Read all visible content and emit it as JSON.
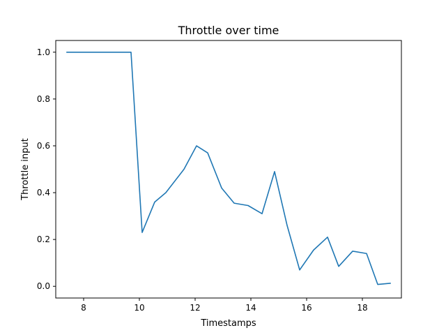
{
  "chart_data": {
    "type": "line",
    "title": "Throttle over time",
    "xlabel": "Timestamps",
    "ylabel": "Throttle input",
    "xlim": [
      7.0,
      19.4
    ],
    "ylim": [
      -0.05,
      1.05
    ],
    "xticks": [
      8,
      10,
      12,
      14,
      16,
      18
    ],
    "yticks": [
      0.0,
      0.2,
      0.4,
      0.6,
      0.8,
      1.0
    ],
    "xtick_labels": [
      "8",
      "10",
      "12",
      "14",
      "16",
      "18"
    ],
    "ytick_labels": [
      "0.0",
      "0.2",
      "0.4",
      "0.6",
      "0.8",
      "1.0"
    ],
    "grid": false,
    "line_color": "#1f77b4",
    "series": [
      {
        "x": [
          7.4,
          9.7,
          10.1,
          10.55,
          10.95,
          11.6,
          12.05,
          12.45,
          12.95,
          13.4,
          13.9,
          14.4,
          14.85,
          15.3,
          15.75,
          16.25,
          16.75,
          17.15,
          17.65,
          18.15,
          18.55,
          19.0
        ],
        "y": [
          1.0,
          1.0,
          0.23,
          0.36,
          0.4,
          0.5,
          0.6,
          0.57,
          0.42,
          0.355,
          0.345,
          0.31,
          0.49,
          0.26,
          0.07,
          0.155,
          0.21,
          0.085,
          0.15,
          0.14,
          0.008,
          0.013
        ]
      }
    ]
  }
}
